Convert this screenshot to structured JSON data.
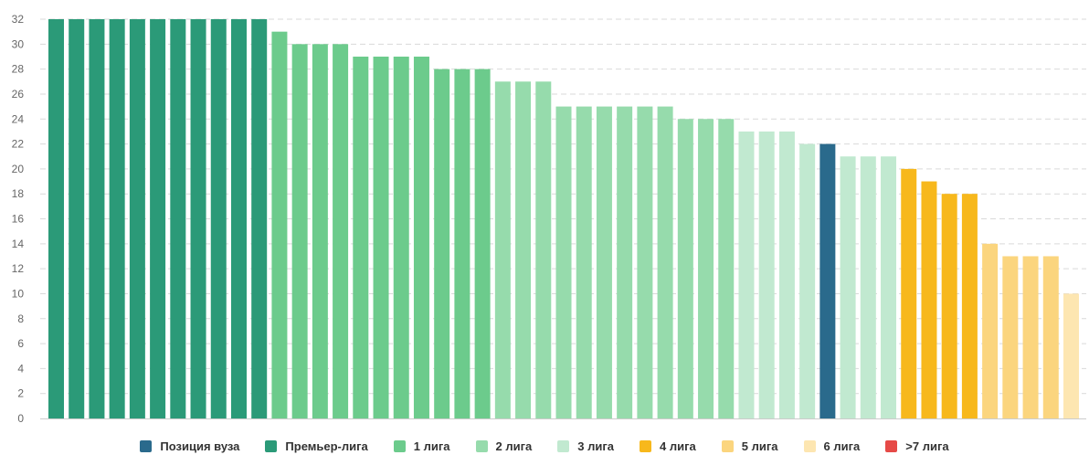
{
  "chart_data": {
    "type": "bar",
    "title": "",
    "xlabel": "",
    "ylabel": "",
    "ylim": [
      0,
      32
    ],
    "yticks": [
      0,
      2,
      4,
      6,
      8,
      10,
      12,
      14,
      16,
      18,
      20,
      22,
      24,
      26,
      28,
      30,
      32
    ],
    "grid": true,
    "legend_position": "bottom",
    "categories_colors": {
      "pos": "#2a6a8c",
      "premier": "#2b9a78",
      "l1": "#6ccb8c",
      "l2": "#96dbac",
      "l3": "#c1e9d0",
      "l4": "#f7b81c",
      "l5": "#fbd57e",
      "l6": "#fde6b1",
      "l7": "#e64a47"
    },
    "legend": [
      {
        "key": "pos",
        "label": "Позиция вуза"
      },
      {
        "key": "premier",
        "label": "Премьер-лига"
      },
      {
        "key": "l1",
        "label": "1 лига"
      },
      {
        "key": "l2",
        "label": "2 лига"
      },
      {
        "key": "l3",
        "label": "3 лига"
      },
      {
        "key": "l4",
        "label": "4 лига"
      },
      {
        "key": "l5",
        "label": "5 лига"
      },
      {
        "key": "l6",
        "label": "6 лига"
      },
      {
        "key": "l7",
        "label": ">7 лига"
      }
    ],
    "bars": [
      {
        "value": 32,
        "group": "premier"
      },
      {
        "value": 32,
        "group": "premier"
      },
      {
        "value": 32,
        "group": "premier"
      },
      {
        "value": 32,
        "group": "premier"
      },
      {
        "value": 32,
        "group": "premier"
      },
      {
        "value": 32,
        "group": "premier"
      },
      {
        "value": 32,
        "group": "premier"
      },
      {
        "value": 32,
        "group": "premier"
      },
      {
        "value": 32,
        "group": "premier"
      },
      {
        "value": 32,
        "group": "premier"
      },
      {
        "value": 32,
        "group": "premier"
      },
      {
        "value": 31,
        "group": "l1"
      },
      {
        "value": 30,
        "group": "l1"
      },
      {
        "value": 30,
        "group": "l1"
      },
      {
        "value": 30,
        "group": "l1"
      },
      {
        "value": 29,
        "group": "l1"
      },
      {
        "value": 29,
        "group": "l1"
      },
      {
        "value": 29,
        "group": "l1"
      },
      {
        "value": 29,
        "group": "l1"
      },
      {
        "value": 28,
        "group": "l1"
      },
      {
        "value": 28,
        "group": "l1"
      },
      {
        "value": 28,
        "group": "l1"
      },
      {
        "value": 27,
        "group": "l2"
      },
      {
        "value": 27,
        "group": "l2"
      },
      {
        "value": 27,
        "group": "l2"
      },
      {
        "value": 25,
        "group": "l2"
      },
      {
        "value": 25,
        "group": "l2"
      },
      {
        "value": 25,
        "group": "l2"
      },
      {
        "value": 25,
        "group": "l2"
      },
      {
        "value": 25,
        "group": "l2"
      },
      {
        "value": 25,
        "group": "l2"
      },
      {
        "value": 24,
        "group": "l2"
      },
      {
        "value": 24,
        "group": "l2"
      },
      {
        "value": 24,
        "group": "l2"
      },
      {
        "value": 23,
        "group": "l3"
      },
      {
        "value": 23,
        "group": "l3"
      },
      {
        "value": 23,
        "group": "l3"
      },
      {
        "value": 22,
        "group": "l3"
      },
      {
        "value": 22,
        "group": "pos"
      },
      {
        "value": 21,
        "group": "l3"
      },
      {
        "value": 21,
        "group": "l3"
      },
      {
        "value": 21,
        "group": "l3"
      },
      {
        "value": 20,
        "group": "l4"
      },
      {
        "value": 19,
        "group": "l4"
      },
      {
        "value": 18,
        "group": "l4"
      },
      {
        "value": 18,
        "group": "l4"
      },
      {
        "value": 14,
        "group": "l5"
      },
      {
        "value": 13,
        "group": "l5"
      },
      {
        "value": 13,
        "group": "l5"
      },
      {
        "value": 13,
        "group": "l5"
      },
      {
        "value": 10,
        "group": "l6"
      }
    ]
  }
}
